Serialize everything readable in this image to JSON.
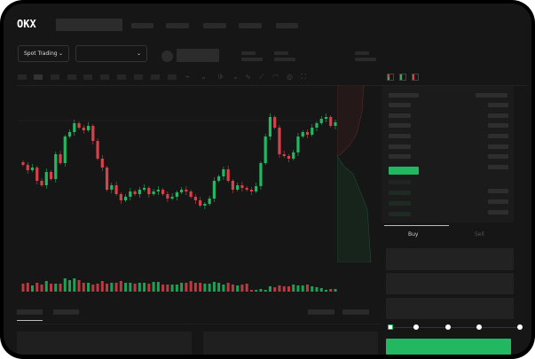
{
  "header": {
    "brand": "OKX",
    "market_selector": "Spot Trading",
    "chevron": "⌄"
  },
  "toolbar_icons": [
    "line-icon",
    "chevron-down-icon",
    "indicator-icon",
    "chevron-down-icon",
    "wave-icon",
    "ruler-icon",
    "camera-icon",
    "settings-icon",
    "fullscreen-icon"
  ],
  "orderbook": {
    "layout_icons": [
      "both-sides-icon",
      "bids-only-icon",
      "asks-only-icon"
    ]
  },
  "trade": {
    "tabs": [
      {
        "label": "Buy"
      },
      {
        "label": "Sell"
      }
    ],
    "slider_percent": 0
  },
  "colors": {
    "up": "#22b861",
    "down": "#d9414a",
    "background": "#161616",
    "panel": "#2a2a2a"
  },
  "chart_data": {
    "type": "candlestick",
    "closes": [
      68,
      62,
      65,
      50,
      45,
      60,
      52,
      80,
      70,
      100,
      105,
      115,
      110,
      107,
      112,
      95,
      75,
      65,
      40,
      45,
      35,
      28,
      32,
      38,
      35,
      40,
      42,
      35,
      38,
      40,
      35,
      30,
      32,
      37,
      40,
      38,
      32,
      28,
      22,
      24,
      30,
      50,
      55,
      63,
      50,
      40,
      45,
      42,
      40,
      38,
      44,
      70,
      100,
      122,
      110,
      80,
      78,
      75,
      82,
      100,
      105,
      102,
      110,
      115,
      120,
      122,
      112,
      116
    ],
    "volumes": [
      9,
      10,
      7,
      10,
      8,
      12,
      9,
      9,
      9,
      15,
      13,
      15,
      13,
      10,
      10,
      8,
      9,
      12,
      9,
      10,
      10,
      12,
      10,
      10,
      9,
      10,
      10,
      9,
      11,
      11,
      8,
      8,
      8,
      8,
      10,
      10,
      12,
      10,
      10,
      9,
      9,
      11,
      10,
      8,
      10,
      8,
      7,
      8,
      9,
      2,
      2,
      3,
      2,
      6,
      5,
      7,
      6,
      6,
      8,
      7,
      7,
      8,
      6,
      5,
      4,
      2,
      3,
      3
    ]
  }
}
